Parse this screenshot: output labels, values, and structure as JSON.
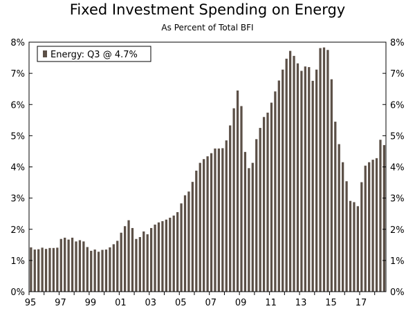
{
  "chart_data": {
    "type": "bar",
    "title": "Fixed Investment Spending on Energy",
    "subtitle": "As Percent of Total BFI",
    "xlabel": "",
    "ylabel": "",
    "ylim": [
      0,
      8
    ],
    "y_ticks": [
      "0%",
      "1%",
      "2%",
      "3%",
      "4%",
      "5%",
      "6%",
      "7%",
      "8%"
    ],
    "x_ticks": [
      "95",
      "97",
      "99",
      "01",
      "03",
      "05",
      "07",
      "09",
      "11",
      "13",
      "15",
      "17"
    ],
    "x_start_year": 1995,
    "bar_color": "#5c5047",
    "legend": {
      "label": "Energy: Q3 @ 4.7%"
    },
    "series": [
      {
        "name": "Energy",
        "values": [
          1.42,
          1.35,
          1.36,
          1.41,
          1.37,
          1.4,
          1.4,
          1.41,
          1.69,
          1.73,
          1.67,
          1.73,
          1.61,
          1.65,
          1.61,
          1.43,
          1.31,
          1.35,
          1.28,
          1.34,
          1.35,
          1.42,
          1.52,
          1.63,
          1.89,
          2.1,
          2.29,
          2.04,
          1.69,
          1.75,
          1.93,
          1.84,
          2.04,
          2.15,
          2.22,
          2.26,
          2.31,
          2.37,
          2.44,
          2.55,
          2.83,
          3.09,
          3.21,
          3.52,
          3.88,
          4.13,
          4.25,
          4.34,
          4.44,
          4.59,
          4.59,
          4.6,
          4.85,
          5.33,
          5.88,
          6.45,
          5.95,
          4.48,
          3.96,
          4.13,
          4.89,
          5.25,
          5.6,
          5.74,
          6.06,
          6.42,
          6.77,
          7.12,
          7.47,
          7.72,
          7.56,
          7.32,
          7.08,
          7.22,
          7.2,
          6.76,
          7.12,
          7.81,
          7.83,
          7.75,
          6.81,
          5.45,
          4.73,
          4.15,
          3.54,
          2.91,
          2.87,
          2.74,
          3.51,
          4.04,
          4.15,
          4.23,
          4.28,
          4.87,
          4.7
        ]
      }
    ]
  }
}
